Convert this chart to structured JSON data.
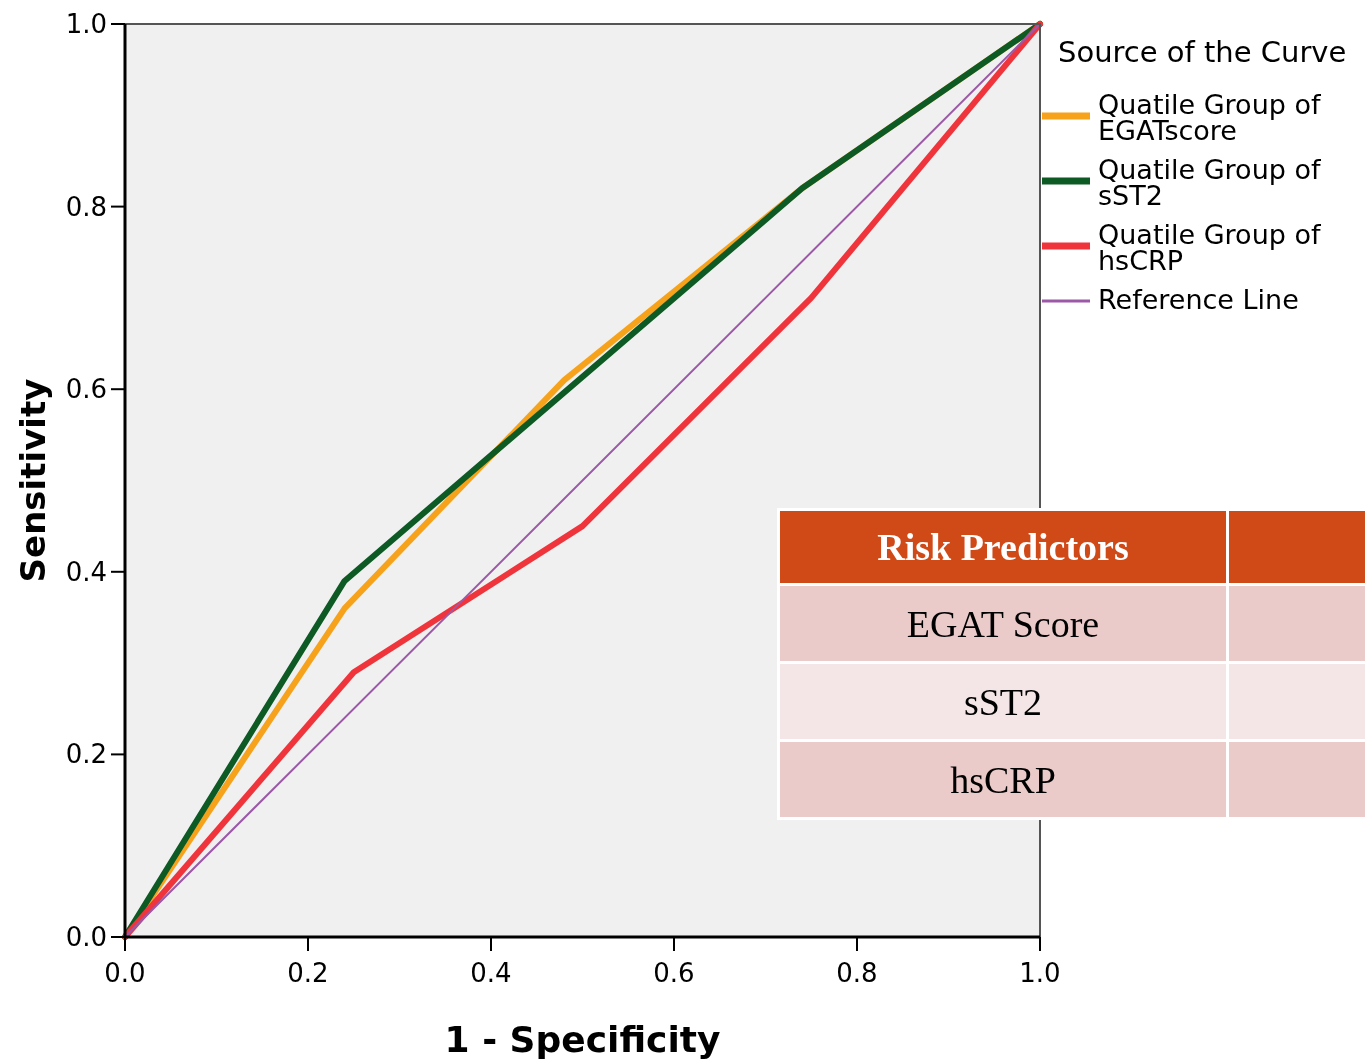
{
  "chart_data": {
    "type": "line",
    "xlabel": "1 - Specificity",
    "ylabel": "Sensitivity",
    "legend_title": "Source of the Curve",
    "legend": "top right",
    "xlim": [
      0,
      1
    ],
    "ylim": [
      0,
      1
    ],
    "xticks": [
      {
        "value": 0,
        "label": "0.0"
      },
      {
        "value": 0.2,
        "label": "0.2"
      },
      {
        "value": 0.4,
        "label": "0.4"
      },
      {
        "value": 0.6,
        "label": "0.6"
      },
      {
        "value": 0.8,
        "label": "0.8"
      },
      {
        "value": 1,
        "label": "1.0"
      }
    ],
    "yticks": [
      {
        "value": 0,
        "label": "0.0"
      },
      {
        "value": 0.2,
        "label": "0.2"
      },
      {
        "value": 0.4,
        "label": "0.4"
      },
      {
        "value": 0.6,
        "label": "0.6"
      },
      {
        "value": 0.8,
        "label": "0.8"
      },
      {
        "value": 1,
        "label": "1.0"
      }
    ],
    "series": [
      {
        "name": "Quatile Group of EGATscore",
        "color": "#f7a21b",
        "x": [
          0,
          0.24,
          0.48,
          0.74,
          1
        ],
        "values": [
          0,
          0.36,
          0.61,
          0.82,
          1
        ]
      },
      {
        "name": "Quatile Group of sST2",
        "color": "#0d5a24",
        "x": [
          0,
          0.24,
          0.74,
          1
        ],
        "values": [
          0,
          0.39,
          0.82,
          1
        ]
      },
      {
        "name": "Quatile Group of hsCRP",
        "color": "#f0343c",
        "x": [
          0,
          0.25,
          0.5,
          0.75,
          1
        ],
        "values": [
          0,
          0.29,
          0.45,
          0.7,
          1
        ]
      },
      {
        "name": "Reference Line",
        "color": "#9b59a8",
        "x": [
          0,
          1
        ],
        "values": [
          0,
          1
        ]
      }
    ],
    "annotations": [
      "Risk Predictors",
      "EGAT Score",
      "sST2",
      "hsCRP"
    ]
  }
}
